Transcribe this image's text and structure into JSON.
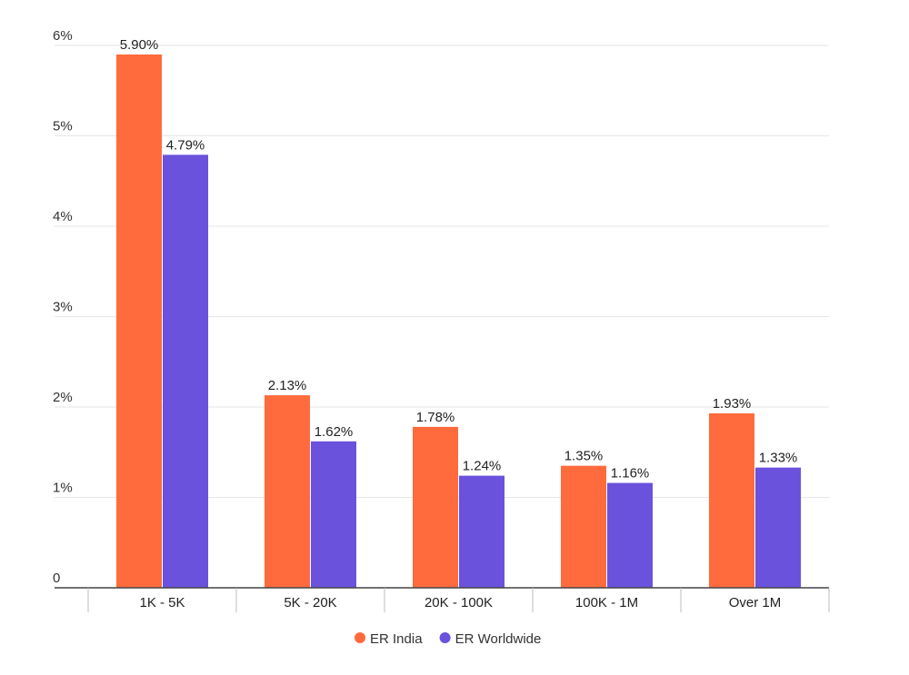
{
  "chart_data": {
    "type": "bar",
    "categories": [
      "1K - 5K",
      "5K - 20K",
      "20K - 100K",
      "100K - 1M",
      "Over 1M"
    ],
    "series": [
      {
        "name": "ER India",
        "color": "#FF6B3D",
        "values": [
          5.9,
          2.13,
          1.78,
          1.35,
          1.93
        ],
        "labels": [
          "5.90%",
          "2.13%",
          "1.78%",
          "1.35%",
          "1.93%"
        ]
      },
      {
        "name": "ER Worldwide",
        "color": "#6B52DC",
        "values": [
          4.79,
          1.62,
          1.24,
          1.16,
          1.33
        ],
        "labels": [
          "4.79%",
          "1.62%",
          "1.24%",
          "1.16%",
          "1.33%"
        ]
      }
    ],
    "yticks": [
      0,
      1,
      2,
      3,
      4,
      5,
      6
    ],
    "ytick_labels": [
      "0",
      "1%",
      "2%",
      "3%",
      "4%",
      "5%",
      "6%"
    ],
    "ylim": [
      0,
      6
    ],
    "title": "",
    "xlabel": "",
    "ylabel": "",
    "grid": true,
    "legend_position": "bottom-center"
  }
}
